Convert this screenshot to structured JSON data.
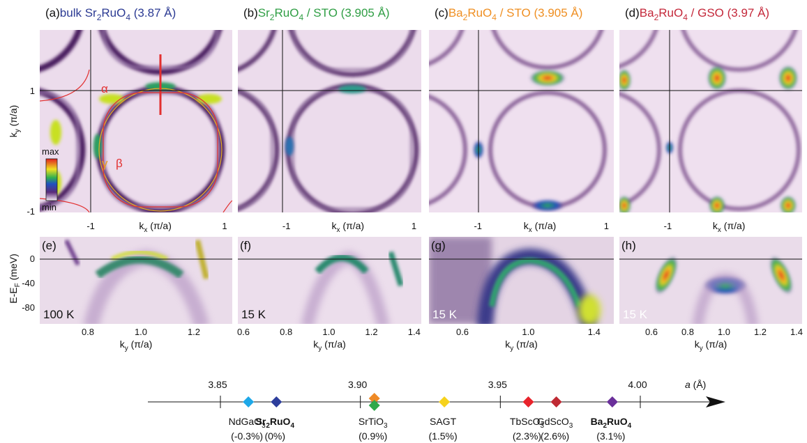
{
  "figure": {
    "panels_top": [
      {
        "label": "(a)",
        "title": [
          "bulk Sr",
          "2",
          "RuO",
          "4",
          " (3.87 Å)"
        ],
        "title_color": "#2b3a93",
        "x_ticks": [
          "-1",
          "1"
        ],
        "x_axis_label": [
          "k",
          "x",
          " (π/a)"
        ]
      },
      {
        "label": "(b)",
        "title": [
          "Sr",
          "2",
          "RuO",
          "4",
          " / STO (3.905 Å)"
        ],
        "title_color": "#2f9e44",
        "x_ticks": [
          "-1",
          "1"
        ],
        "x_axis_label": [
          "k",
          "x",
          " (π/a)"
        ]
      },
      {
        "label": "(c)",
        "title": [
          "Ba",
          "2",
          "RuO",
          "4",
          " / STO (3.905 Å)"
        ],
        "title_color": "#ef8f22",
        "x_ticks": [
          "-1",
          "1"
        ],
        "x_axis_label": [
          "k",
          "x",
          " (π/a)"
        ]
      },
      {
        "label": "(d)",
        "title": [
          "Ba",
          "2",
          "RuO",
          "4",
          " / GSO (3.97 Å)"
        ],
        "title_color": "#c4283a",
        "x_ticks": [
          "-1"
        ],
        "x_axis_label": [
          "k",
          "x",
          " (π/a)"
        ]
      }
    ],
    "top_y_axis": {
      "label": [
        "k",
        "y",
        " (π/a)"
      ],
      "ticks": [
        "1",
        "-1"
      ]
    },
    "panel_a_annotations": {
      "alpha": "α",
      "beta": "β",
      "gamma": "γ",
      "colorbar_max": "max",
      "colorbar_min": "min"
    },
    "panels_bottom": [
      {
        "label": "(e)",
        "temperature": "100 K",
        "x_ticks": [
          "0.8",
          "1.0",
          "1.2"
        ],
        "x_axis_label": [
          "k",
          "y",
          " (π/a)"
        ]
      },
      {
        "label": "(f)",
        "temperature": "15 K",
        "x_ticks": [
          "0.6",
          "0.8",
          "1.0",
          "1.2",
          "1.4"
        ],
        "x_axis_label": [
          "k",
          "y",
          " (π/a)"
        ]
      },
      {
        "label": "(g)",
        "temperature": "15 K",
        "x_ticks": [
          "0.6",
          "1.0",
          "1.4"
        ],
        "x_axis_label": [
          "k",
          "y",
          " (π/a)"
        ]
      },
      {
        "label": "(h)",
        "temperature": "15 K",
        "x_ticks": [
          "0.6",
          "0.8",
          "1.0",
          "1.2",
          "1.4"
        ],
        "x_axis_label": [
          "k",
          "y",
          " (π/a)"
        ]
      }
    ],
    "bottom_y_axis": {
      "label": [
        "E-E",
        "F",
        " (meV)"
      ],
      "ticks": [
        "0",
        "-40",
        "-80"
      ]
    },
    "lattice_axis": {
      "ticks": [
        3.85,
        {
          "value": 3.9,
          "label": "3.90"
        },
        3.95,
        {
          "value": 4,
          "label": "4.00"
        }
      ],
      "axis_label": {
        "symbol": "a",
        "unit": " (Å)"
      },
      "substrates": [
        {
          "name": [
            "NdGaO",
            "3"
          ],
          "strain": "(-0.3%)",
          "a": 3.86,
          "colors": [
            "#1ea8e8"
          ],
          "bold": false
        },
        {
          "name": [
            "Sr",
            "2",
            "RuO",
            "4"
          ],
          "strain": "(0%)",
          "a": 3.87,
          "colors": [
            "#2d3e9c"
          ],
          "bold": true
        },
        {
          "name": [
            "SrTiO",
            "3"
          ],
          "strain": "(0.9%)",
          "a": 3.905,
          "colors": [
            "#ef8a26",
            "#2fa84a"
          ],
          "bold": false
        },
        {
          "name": [
            "SAGT"
          ],
          "strain": "(1.5%)",
          "a": 3.93,
          "colors": [
            "#f6d21c"
          ],
          "bold": false
        },
        {
          "name": [
            "TbScO",
            "3"
          ],
          "strain": "(2.3%)",
          "a": 3.96,
          "colors": [
            "#e8232b"
          ],
          "bold": false
        },
        {
          "name": [
            "GdScO",
            "3"
          ],
          "strain": "(2.6%)",
          "a": 3.97,
          "colors": [
            "#bf2a33"
          ],
          "bold": false
        },
        {
          "name": [
            "Ba",
            "2",
            "RuO",
            "4"
          ],
          "strain": "(3.1%)",
          "a": 3.99,
          "colors": [
            "#6a2f9a"
          ],
          "bold": true
        }
      ]
    }
  }
}
